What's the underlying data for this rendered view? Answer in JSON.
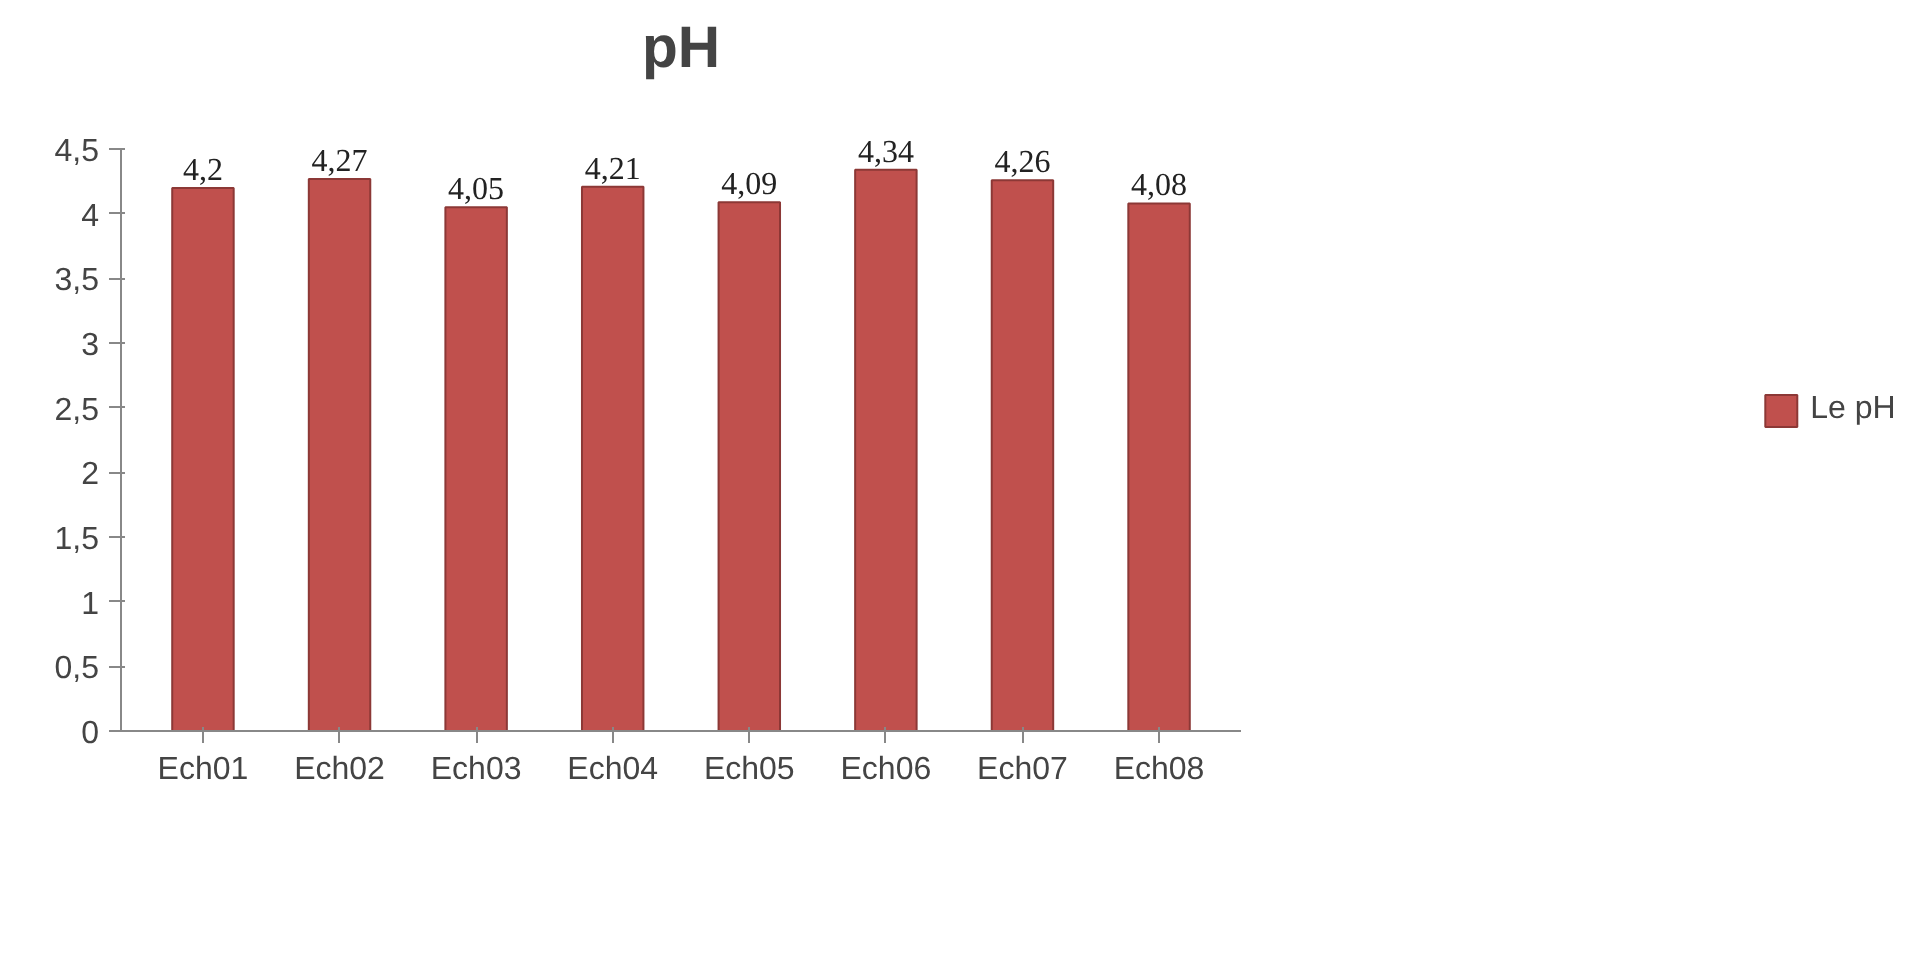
{
  "chart_data": {
    "type": "bar",
    "title": "pH",
    "categories": [
      "Ech01",
      "Ech02",
      "Ech03",
      "Ech04",
      "Ech05",
      "Ech06",
      "Ech07",
      "Ech08"
    ],
    "series": [
      {
        "name": "Le pH",
        "color": "#c0504d",
        "values": [
          4.2,
          4.27,
          4.05,
          4.21,
          4.09,
          4.34,
          4.26,
          4.08
        ],
        "value_labels": [
          "4,2",
          "4,27",
          "4,05",
          "4,21",
          "4,09",
          "4,34",
          "4,26",
          "4,08"
        ]
      }
    ],
    "ylim": [
      0,
      4.5
    ],
    "yticks": [
      0,
      {
        "value": 0.5,
        "label": "0,5"
      },
      1,
      {
        "value": 1.5,
        "label": "1,5"
      },
      2,
      {
        "value": 2.5,
        "label": "2,5"
      },
      3,
      {
        "value": 3.5,
        "label": "3,5"
      },
      4,
      {
        "value": 4.5,
        "label": "4,5"
      }
    ],
    "grid": false,
    "legend": "right"
  }
}
